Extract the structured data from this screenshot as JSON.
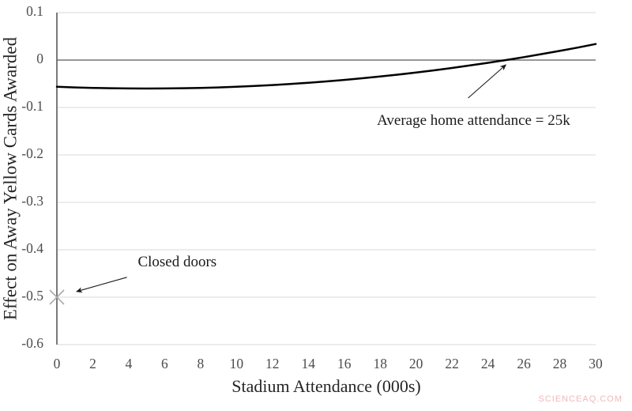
{
  "watermark": {
    "text": "SCIENCEAQ.COM",
    "color": "#f0b9bc"
  },
  "chart_data": {
    "type": "line",
    "title": "",
    "xlabel": "Stadium Attendance (000s)",
    "ylabel": "Effect on Away Yellow Cards Awarded",
    "xlim": [
      0,
      30
    ],
    "ylim": [
      -0.6,
      0.1
    ],
    "grid": true,
    "legend": false,
    "x_ticks": {
      "values": [
        0,
        2,
        4,
        6,
        8,
        10,
        12,
        14,
        16,
        18,
        20,
        22,
        24,
        26,
        28,
        30
      ],
      "labels": [
        "0",
        "2",
        "4",
        "6",
        "8",
        "10",
        "12",
        "14",
        "16",
        "18",
        "20",
        "22",
        "24",
        "26",
        "28",
        "30"
      ]
    },
    "y_ticks": {
      "values": [
        0.1,
        0,
        -0.1,
        -0.2,
        -0.3,
        -0.4,
        -0.5,
        -0.6
      ],
      "labels": [
        "0.1",
        "0",
        "-0.1",
        "-0.2",
        "-0.3",
        "-0.4",
        "-0.5",
        "-0.6"
      ]
    },
    "series": [
      {
        "name": "effect-on-away-yellow-cards",
        "x": [
          0,
          1,
          2,
          3,
          4,
          5,
          6,
          7,
          8,
          9,
          10,
          11,
          12,
          13,
          14,
          15,
          16,
          17,
          18,
          19,
          20,
          21,
          22,
          23,
          24,
          25,
          26,
          27,
          28,
          29,
          30
        ],
        "y": [
          -0.0563,
          -0.0576,
          -0.0587,
          -0.0594,
          -0.0599,
          -0.06,
          -0.0599,
          -0.0594,
          -0.0587,
          -0.0576,
          -0.0563,
          -0.0546,
          -0.0527,
          -0.0504,
          -0.0479,
          -0.045,
          -0.0419,
          -0.0384,
          -0.0347,
          -0.0306,
          -0.0263,
          -0.0216,
          -0.0167,
          -0.0114,
          -0.0059,
          0.0,
          0.0062,
          0.0126,
          0.0194,
          0.0264,
          0.0338
        ]
      }
    ],
    "markers": [
      {
        "name": "closed-doors-point",
        "symbol": "x",
        "x": 0,
        "y": -0.5
      }
    ],
    "annotations": [
      {
        "id": "average-attendance-annotation",
        "text": "Average home attendance = 25k",
        "text_at": {
          "x": 23.2,
          "y": -0.129
        },
        "arrow": {
          "from": {
            "x": 22.9,
            "y": -0.08
          },
          "to": {
            "x": 25.0,
            "y": -0.01
          }
        }
      },
      {
        "id": "closed-doors-annotation",
        "text": "Closed doors",
        "text_at": {
          "x": 6.7,
          "y": -0.428
        },
        "arrow": {
          "from": {
            "x": 3.9,
            "y": -0.458
          },
          "to": {
            "x": 1.1,
            "y": -0.488
          }
        }
      }
    ],
    "colors": {
      "curve": "#000000",
      "zero_line": "#595959",
      "grid": "#d9d9d9",
      "y_axis": "#595959",
      "tick_text": "#4d4d4d",
      "axis_title_text": "#262626",
      "annotation_text": "#1a1a1a",
      "arrow": "#1a1a1a",
      "marker": "#aaaaaa"
    }
  }
}
